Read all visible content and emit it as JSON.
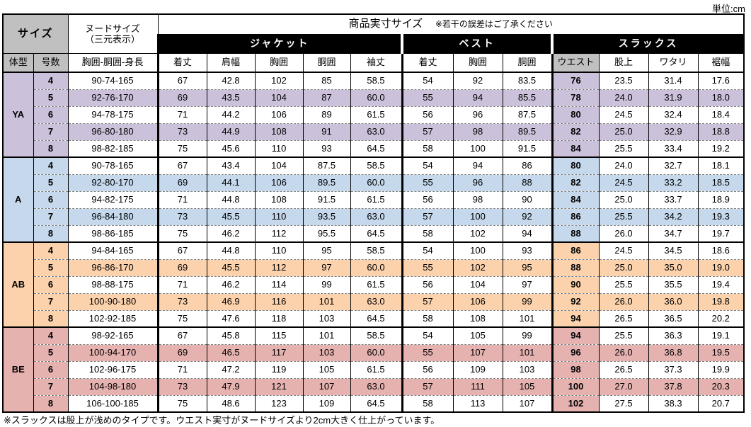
{
  "unit_label": "単位:cm",
  "footnote": "※スラックスは股上が浅めのタイプです。ウエスト実寸がヌードサイズより2cm大きく仕上がっています。",
  "header": {
    "size_label": "サイズ",
    "nude_size_line1": "ヌードサイズ",
    "nude_size_line2": "（三元表示）",
    "product_size_label": "商品実寸サイズ",
    "disclaimer": "※若干の誤差はご了承ください",
    "body_type_label": "体型",
    "size_number_label": "号数",
    "nude_measure_label": "胸囲-胴囲-身長",
    "groups": [
      {
        "label": "ジャケット",
        "columns": [
          "着丈",
          "肩幅",
          "胸囲",
          "胴囲",
          "袖丈"
        ]
      },
      {
        "label": "ベスト",
        "columns": [
          "着丈",
          "胸囲",
          "胴囲"
        ]
      },
      {
        "label": "スラックス",
        "columns": [
          "ウエスト",
          "股上",
          "ワタリ",
          "裾幅"
        ]
      }
    ]
  },
  "colors": {
    "header_gray": "#C0C0C0",
    "group_header_bg": "#000000",
    "section_YA": "#CCC1DA",
    "section_A": "#C5D8EC",
    "section_AB": "#FBD2AC",
    "section_BE": "#E5B2B0"
  },
  "chart_data": {
    "type": "table",
    "title": "商品実寸サイズ",
    "unit": "cm",
    "column_groups": [
      "ジャケット",
      "ベスト",
      "スラックス"
    ],
    "columns": [
      "体型",
      "号数",
      "胸囲-胴囲-身長",
      "ジャケット着丈",
      "ジャケット肩幅",
      "ジャケット胸囲",
      "ジャケット胴囲",
      "ジャケット袖丈",
      "ベスト着丈",
      "ベスト胸囲",
      "ベスト胴囲",
      "スラックスウエスト",
      "スラックス股上",
      "スラックスワタリ",
      "スラックス裾幅"
    ],
    "sections": [
      {
        "body_type": "YA",
        "color": "#CCC1DA",
        "rows": [
          [
            "4",
            "90-74-165",
            "67",
            "42.8",
            "102",
            "85",
            "58.5",
            "54",
            "92",
            "83.5",
            "76",
            "23.5",
            "31.4",
            "17.6"
          ],
          [
            "5",
            "92-76-170",
            "69",
            "43.5",
            "104",
            "87",
            "60.0",
            "55",
            "94",
            "85.5",
            "78",
            "24.0",
            "31.9",
            "18.0"
          ],
          [
            "6",
            "94-78-175",
            "71",
            "44.2",
            "106",
            "89",
            "61.5",
            "56",
            "96",
            "87.5",
            "80",
            "24.5",
            "32.4",
            "18.4"
          ],
          [
            "7",
            "96-80-180",
            "73",
            "44.9",
            "108",
            "91",
            "63.0",
            "57",
            "98",
            "89.5",
            "82",
            "25.0",
            "32.9",
            "18.8"
          ],
          [
            "8",
            "98-82-185",
            "75",
            "45.6",
            "110",
            "93",
            "64.5",
            "58",
            "100",
            "91.5",
            "84",
            "25.5",
            "33.4",
            "19.2"
          ]
        ]
      },
      {
        "body_type": "A",
        "color": "#C5D8EC",
        "rows": [
          [
            "4",
            "90-78-165",
            "67",
            "43.4",
            "104",
            "87.5",
            "58.5",
            "54",
            "94",
            "86",
            "80",
            "24.0",
            "32.7",
            "18.1"
          ],
          [
            "5",
            "92-80-170",
            "69",
            "44.1",
            "106",
            "89.5",
            "60.0",
            "55",
            "96",
            "88",
            "82",
            "24.5",
            "33.2",
            "18.5"
          ],
          [
            "6",
            "94-82-175",
            "71",
            "44.8",
            "108",
            "91.5",
            "61.5",
            "56",
            "98",
            "90",
            "84",
            "25.0",
            "33.7",
            "18.9"
          ],
          [
            "7",
            "96-84-180",
            "73",
            "45.5",
            "110",
            "93.5",
            "63.0",
            "57",
            "100",
            "92",
            "86",
            "25.5",
            "34.2",
            "19.3"
          ],
          [
            "8",
            "98-86-185",
            "75",
            "46.2",
            "112",
            "95.5",
            "64.5",
            "58",
            "102",
            "94",
            "88",
            "26.0",
            "34.7",
            "19.7"
          ]
        ]
      },
      {
        "body_type": "AB",
        "color": "#FBD2AC",
        "rows": [
          [
            "4",
            "94-84-165",
            "67",
            "44.8",
            "110",
            "95",
            "58.5",
            "54",
            "100",
            "93",
            "86",
            "24.5",
            "34.5",
            "18.6"
          ],
          [
            "5",
            "96-86-170",
            "69",
            "45.5",
            "112",
            "97",
            "60.0",
            "55",
            "102",
            "95",
            "88",
            "25.0",
            "35.0",
            "19.0"
          ],
          [
            "6",
            "98-88-175",
            "71",
            "46.2",
            "114",
            "99",
            "61.5",
            "56",
            "104",
            "97",
            "90",
            "25.5",
            "35.5",
            "19.4"
          ],
          [
            "7",
            "100-90-180",
            "73",
            "46.9",
            "116",
            "101",
            "63.0",
            "57",
            "106",
            "99",
            "92",
            "26.0",
            "36.0",
            "19.8"
          ],
          [
            "8",
            "102-92-185",
            "75",
            "47.6",
            "118",
            "103",
            "64.5",
            "58",
            "108",
            "101",
            "94",
            "26.5",
            "36.5",
            "20.2"
          ]
        ]
      },
      {
        "body_type": "BE",
        "color": "#E5B2B0",
        "rows": [
          [
            "4",
            "98-92-165",
            "67",
            "45.8",
            "115",
            "101",
            "58.5",
            "54",
            "105",
            "99",
            "94",
            "25.5",
            "36.3",
            "19.1"
          ],
          [
            "5",
            "100-94-170",
            "69",
            "46.5",
            "117",
            "103",
            "60.0",
            "55",
            "107",
            "101",
            "96",
            "26.0",
            "36.8",
            "19.5"
          ],
          [
            "6",
            "102-96-175",
            "71",
            "47.2",
            "119",
            "105",
            "61.5",
            "56",
            "109",
            "103",
            "98",
            "26.5",
            "37.3",
            "19.9"
          ],
          [
            "7",
            "104-98-180",
            "73",
            "47.9",
            "121",
            "107",
            "63.0",
            "57",
            "111",
            "105",
            "100",
            "27.0",
            "37.8",
            "20.3"
          ],
          [
            "8",
            "106-100-185",
            "75",
            "48.6",
            "123",
            "109",
            "64.5",
            "58",
            "113",
            "107",
            "102",
            "27.5",
            "38.3",
            "20.7"
          ]
        ]
      }
    ]
  }
}
